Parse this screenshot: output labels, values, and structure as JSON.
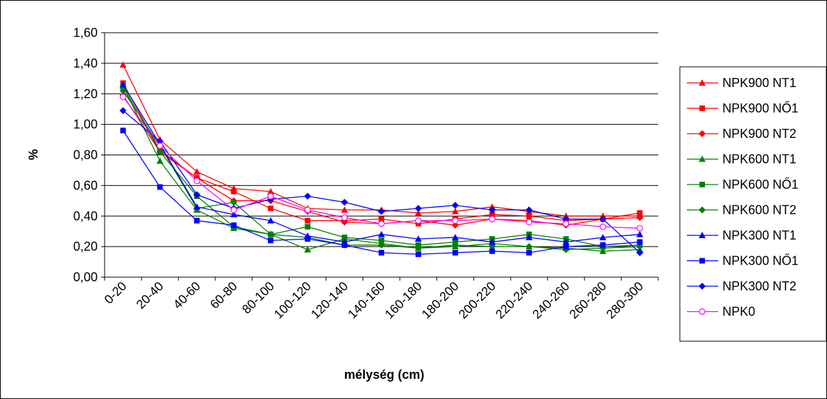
{
  "chart_data": {
    "type": "line",
    "title": "",
    "xlabel": "mélység (cm)",
    "ylabel": "%",
    "ylim": [
      0,
      1.6
    ],
    "ytick_labels": [
      "0,00",
      "0,20",
      "0,40",
      "0,60",
      "0,80",
      "1,00",
      "1,20",
      "1,40",
      "1,60"
    ],
    "categories": [
      "0-20",
      "20-40",
      "40-60",
      "60-80",
      "80-100",
      "100-120",
      "120-140",
      "140-160",
      "160-180",
      "180-200",
      "200-220",
      "220-240",
      "240-260",
      "260-280",
      "280-300"
    ],
    "grid": "horizontal",
    "legend_position": "right",
    "series": [
      {
        "name": "NPK900 NT1",
        "color": "#ff0000",
        "marker": "triangle",
        "values": [
          1.39,
          0.9,
          0.69,
          0.58,
          0.56,
          0.45,
          0.44,
          0.44,
          0.42,
          0.43,
          0.46,
          0.43,
          0.4,
          0.4,
          0.4
        ]
      },
      {
        "name": "NPK900 NŐ1",
        "color": "#ff0000",
        "marker": "square",
        "values": [
          1.27,
          0.83,
          0.65,
          0.56,
          0.45,
          0.37,
          0.37,
          0.38,
          0.35,
          0.38,
          0.41,
          0.4,
          0.37,
          0.38,
          0.42
        ]
      },
      {
        "name": "NPK900 NT2",
        "color": "#ff0000",
        "marker": "diamond",
        "values": [
          1.19,
          0.82,
          0.65,
          0.5,
          0.5,
          0.43,
          0.36,
          0.35,
          0.37,
          0.34,
          0.38,
          0.37,
          0.34,
          0.38,
          0.39
        ]
      },
      {
        "name": "NPK600 NT1",
        "color": "#008000",
        "marker": "triangle",
        "values": [
          1.25,
          0.76,
          0.44,
          0.32,
          0.28,
          0.18,
          0.25,
          0.22,
          0.19,
          0.2,
          0.22,
          0.2,
          0.19,
          0.17,
          0.18
        ]
      },
      {
        "name": "NPK600 NŐ1",
        "color": "#008000",
        "marker": "square",
        "values": [
          1.25,
          0.82,
          0.53,
          0.33,
          0.28,
          0.33,
          0.26,
          0.24,
          0.21,
          0.23,
          0.25,
          0.28,
          0.25,
          0.2,
          0.21
        ]
      },
      {
        "name": "NPK600 NT2",
        "color": "#008000",
        "marker": "diamond",
        "values": [
          1.22,
          0.86,
          0.45,
          0.49,
          0.28,
          0.26,
          0.21,
          0.21,
          0.19,
          0.21,
          0.2,
          0.2,
          0.18,
          0.19,
          0.2
        ]
      },
      {
        "name": "NPK300 NT1",
        "color": "#0000ff",
        "marker": "triangle",
        "values": [
          1.26,
          0.87,
          0.46,
          0.41,
          0.37,
          0.27,
          0.23,
          0.28,
          0.25,
          0.26,
          0.23,
          0.26,
          0.23,
          0.26,
          0.28
        ]
      },
      {
        "name": "NPK300 NŐ1",
        "color": "#0000ff",
        "marker": "square",
        "values": [
          0.96,
          0.59,
          0.37,
          0.34,
          0.24,
          0.25,
          0.21,
          0.16,
          0.15,
          0.16,
          0.17,
          0.16,
          0.2,
          0.21,
          0.23
        ]
      },
      {
        "name": "NPK300 NT2",
        "color": "#0000ff",
        "marker": "diamond",
        "values": [
          1.09,
          0.89,
          0.54,
          0.45,
          0.51,
          0.53,
          0.49,
          0.43,
          0.45,
          0.47,
          0.44,
          0.44,
          0.38,
          0.38,
          0.16
        ]
      },
      {
        "name": "NPK0",
        "color": "#ff00ff",
        "marker": "circle-open",
        "values": [
          1.18,
          0.86,
          0.63,
          0.44,
          0.53,
          0.44,
          0.39,
          0.35,
          0.37,
          0.37,
          0.38,
          0.36,
          0.35,
          0.33,
          0.32
        ]
      }
    ]
  }
}
